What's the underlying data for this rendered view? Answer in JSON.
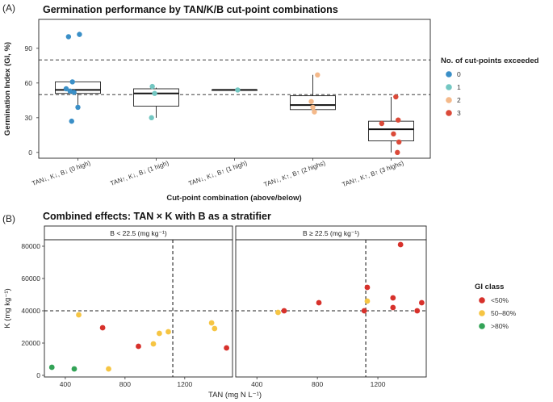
{
  "panel_a": {
    "label": "(A)",
    "title": "Germination performance by TAN/K/B cut-point combinations",
    "ylabel": "Germination Index (GI, %)",
    "xlabel": "Cut-point combination (above/below)",
    "legend_title": "No. of cut-points exceeded",
    "yticks": [
      "0",
      "30",
      "60",
      "90"
    ]
  },
  "panel_b": {
    "label": "(B)",
    "title": "Combined effects: TAN × K with B as a stratifier",
    "ylabel": "K (mg kg⁻¹)",
    "xlabel": "TAN (mg N L⁻¹)",
    "facet_left": "B < 22.5 (mg kg⁻¹)",
    "facet_right": "B ≥ 22.5 (mg kg⁻¹)",
    "legend_title": "GI class",
    "yticks": [
      "0",
      "20000",
      "40000",
      "60000",
      "80000"
    ],
    "xticks_left": [
      "400",
      "800",
      "1200"
    ],
    "xticks_right": [
      "400",
      "800",
      "1200"
    ]
  },
  "chart_data": [
    {
      "type": "box",
      "title": "Germination performance by TAN/K/B cut-point combinations",
      "xlabel": "Cut-point combination (above/below)",
      "ylabel": "Germination Index (GI, %)",
      "ylim": [
        -5,
        115
      ],
      "reference_lines_y": [
        50,
        80
      ],
      "categories": [
        "TAN↓, K↓, B↓ (0 high)",
        "TAN↑, K↓, B↓ (1 high)",
        "TAN↓, K↓, B↑ (1 high)",
        "TAN↓, K↑, B↑ (2 highs)",
        "TAN↑, K↑, B↑ (3 highs)"
      ],
      "legend_title": "No. of cut-points exceeded",
      "legend": [
        {
          "label": "0",
          "color": "#3a8fc7"
        },
        {
          "label": "1",
          "color": "#73c7c2"
        },
        {
          "label": "2",
          "color": "#f4b98a"
        },
        {
          "label": "3",
          "color": "#db4a39"
        }
      ],
      "boxes": [
        {
          "category": 0,
          "group": "0",
          "whisker_low": 39,
          "q1": 51,
          "median": 54,
          "q3": 61,
          "whisker_high": 61
        },
        {
          "category": 1,
          "group": "1",
          "whisker_low": 30,
          "q1": 40,
          "median": 51,
          "q3": 55,
          "whisker_high": 56
        },
        {
          "category": 2,
          "group": "1",
          "whisker_low": 54,
          "q1": 54,
          "median": 54,
          "q3": 54,
          "whisker_high": 54
        },
        {
          "category": 3,
          "group": "2",
          "whisker_low": 37,
          "q1": 37,
          "median": 41,
          "q3": 49,
          "whisker_high": 67
        },
        {
          "category": 4,
          "group": "3",
          "whisker_low": 0,
          "q1": 10,
          "median": 20,
          "q3": 27,
          "whisker_high": 48
        }
      ],
      "points": [
        {
          "category": 0,
          "jitter": -0.12,
          "value": 100,
          "group": "0"
        },
        {
          "category": 0,
          "jitter": 0.02,
          "value": 102,
          "group": "0"
        },
        {
          "category": 0,
          "jitter": -0.07,
          "value": 61,
          "group": "0"
        },
        {
          "category": 0,
          "jitter": -0.15,
          "value": 55,
          "group": "0"
        },
        {
          "category": 0,
          "jitter": -0.1,
          "value": 53,
          "group": "0"
        },
        {
          "category": 0,
          "jitter": -0.05,
          "value": 52,
          "group": "0"
        },
        {
          "category": 0,
          "jitter": 0.0,
          "value": 39,
          "group": "0"
        },
        {
          "category": 0,
          "jitter": -0.08,
          "value": 27,
          "group": "0"
        },
        {
          "category": 1,
          "jitter": -0.05,
          "value": 57,
          "group": "1"
        },
        {
          "category": 1,
          "jitter": -0.02,
          "value": 51,
          "group": "1"
        },
        {
          "category": 1,
          "jitter": -0.06,
          "value": 30,
          "group": "1"
        },
        {
          "category": 2,
          "jitter": 0.04,
          "value": 54,
          "group": "1"
        },
        {
          "category": 3,
          "jitter": 0.06,
          "value": 67,
          "group": "2"
        },
        {
          "category": 3,
          "jitter": -0.02,
          "value": 44,
          "group": "2"
        },
        {
          "category": 3,
          "jitter": 0.0,
          "value": 39,
          "group": "2"
        },
        {
          "category": 3,
          "jitter": 0.02,
          "value": 35,
          "group": "2"
        },
        {
          "category": 4,
          "jitter": 0.06,
          "value": 48,
          "group": "3"
        },
        {
          "category": 4,
          "jitter": 0.09,
          "value": 28,
          "group": "3"
        },
        {
          "category": 4,
          "jitter": -0.12,
          "value": 25,
          "group": "3"
        },
        {
          "category": 4,
          "jitter": 0.03,
          "value": 16,
          "group": "3"
        },
        {
          "category": 4,
          "jitter": 0.1,
          "value": 9,
          "group": "3"
        },
        {
          "category": 4,
          "jitter": 0.08,
          "value": 0,
          "group": "3"
        }
      ]
    },
    {
      "type": "scatter",
      "title": "Combined effects: TAN × K with B as a stratifier",
      "xlabel": "TAN (mg N L⁻¹)",
      "ylabel": "K (mg kg⁻¹)",
      "xlim": [
        260,
        1520
      ],
      "ylim": [
        -1000,
        84000
      ],
      "reference_lines": {
        "x": 1120,
        "y": 40000
      },
      "legend_title": "GI class",
      "legend": [
        {
          "label": "<50%",
          "color": "#d7312b"
        },
        {
          "label": "50–80%",
          "color": "#f6c543"
        },
        {
          "label": ">80%",
          "color": "#33a357"
        }
      ],
      "facets": [
        {
          "label": "B < 22.5 (mg kg⁻¹)",
          "points": [
            {
              "x": 310,
              "y": 5000,
              "class": ">80%"
            },
            {
              "x": 460,
              "y": 4000,
              "class": ">80%"
            },
            {
              "x": 690,
              "y": 4000,
              "class": "50–80%"
            },
            {
              "x": 490,
              "y": 37500,
              "class": "50–80%"
            },
            {
              "x": 990,
              "y": 19500,
              "class": "50–80%"
            },
            {
              "x": 1030,
              "y": 26000,
              "class": "50–80%"
            },
            {
              "x": 1090,
              "y": 27000,
              "class": "50–80%"
            },
            {
              "x": 1380,
              "y": 32500,
              "class": "50–80%"
            },
            {
              "x": 1400,
              "y": 29000,
              "class": "50–80%"
            },
            {
              "x": 650,
              "y": 29500,
              "class": "<50%"
            },
            {
              "x": 890,
              "y": 18000,
              "class": "<50%"
            },
            {
              "x": 1480,
              "y": 17000,
              "class": "<50%"
            }
          ]
        },
        {
          "label": "B ≥ 22.5 (mg kg⁻¹)",
          "points": [
            {
              "x": 540,
              "y": 39000,
              "class": "50–80%"
            },
            {
              "x": 1130,
              "y": 46000,
              "class": "50–80%"
            },
            {
              "x": 580,
              "y": 40000,
              "class": "<50%"
            },
            {
              "x": 810,
              "y": 45000,
              "class": "<50%"
            },
            {
              "x": 1110,
              "y": 40000,
              "class": "<50%"
            },
            {
              "x": 1130,
              "y": 54500,
              "class": "<50%"
            },
            {
              "x": 1300,
              "y": 48000,
              "class": "<50%"
            },
            {
              "x": 1300,
              "y": 42000,
              "class": "<50%"
            },
            {
              "x": 1350,
              "y": 81000,
              "class": "<50%"
            },
            {
              "x": 1460,
              "y": 40000,
              "class": "<50%"
            },
            {
              "x": 1490,
              "y": 45000,
              "class": "<50%"
            }
          ]
        }
      ]
    }
  ]
}
